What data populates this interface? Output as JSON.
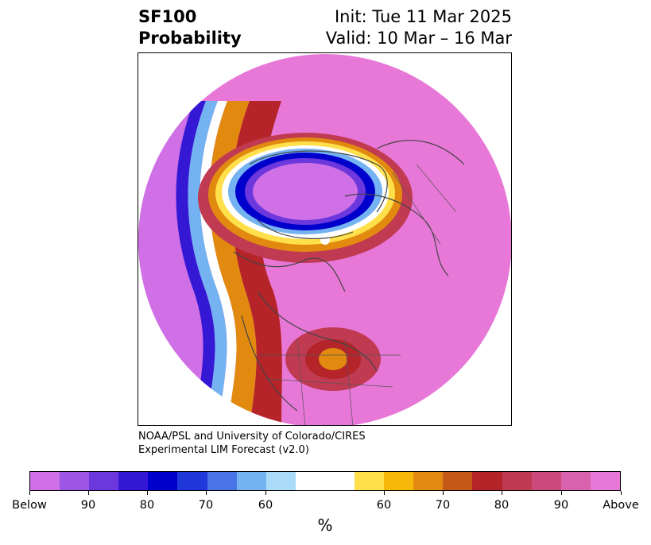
{
  "title": {
    "left_line1": "SF100",
    "left_line2": "Probability",
    "right_line1": "Init: Tue 11 Mar 2025",
    "right_line2": "Valid: 10 Mar – 16 Mar"
  },
  "credit": {
    "line1": "NOAA/PSL and University of Colorado/CIRES",
    "line2": "Experimental LIM Forecast (v2.0)"
  },
  "map": {
    "projection": "north-polar-stereographic",
    "background_color": "#e878d8"
  },
  "colorbar": {
    "unit": "%",
    "colors": [
      "#d070e6",
      "#9c55e4",
      "#6c37dc",
      "#3418d4",
      "#0000cc",
      "#2038da",
      "#4a74e6",
      "#74b2f2",
      "#aadcfa",
      "#ffffff",
      "#ffe04a",
      "#f6b80a",
      "#e28a10",
      "#c65818",
      "#b42428",
      "#c03a52",
      "#cc4a7c",
      "#d862ae",
      "#e878d8"
    ],
    "labels": [
      "Below",
      "90",
      "80",
      "70",
      "60",
      "60",
      "70",
      "80",
      "90",
      "Above"
    ]
  }
}
